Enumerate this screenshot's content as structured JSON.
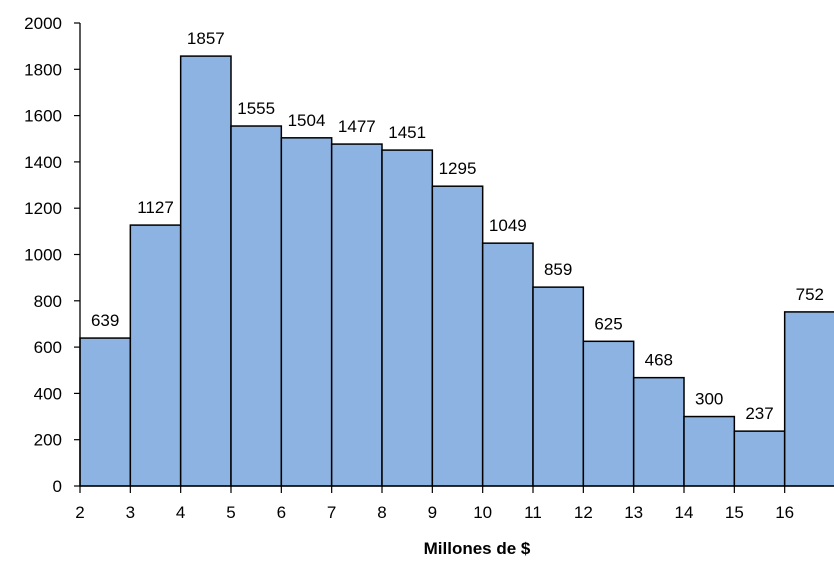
{
  "chart_data": {
    "type": "bar",
    "subtype": "histogram",
    "bins": [
      [
        2,
        3
      ],
      [
        3,
        4
      ],
      [
        4,
        5
      ],
      [
        5,
        6
      ],
      [
        6,
        7
      ],
      [
        7,
        8
      ],
      [
        8,
        9
      ],
      [
        9,
        10
      ],
      [
        10,
        11
      ],
      [
        11,
        12
      ],
      [
        12,
        13
      ],
      [
        13,
        14
      ],
      [
        14,
        15
      ],
      [
        15,
        16
      ],
      [
        16,
        17
      ]
    ],
    "values": [
      639,
      1127,
      1857,
      1555,
      1504,
      1477,
      1451,
      1295,
      1049,
      859,
      625,
      468,
      300,
      237,
      752
    ],
    "x_ticks": [
      "2",
      "3",
      "4",
      "5",
      "6",
      "7",
      "8",
      "9",
      "10",
      "11",
      "12",
      "13",
      "14",
      "15",
      "16"
    ],
    "y_ticks": [
      "0",
      "200",
      "400",
      "600",
      "800",
      "1000",
      "1200",
      "1400",
      "1600",
      "1800",
      "2000"
    ],
    "xlabel": "Millones de $",
    "ylabel": "",
    "title": "",
    "ylim": [
      0,
      2000
    ],
    "grid": false,
    "legend": "none",
    "bar_color": "#8db3e2",
    "bar_edge_color": "#000000"
  }
}
